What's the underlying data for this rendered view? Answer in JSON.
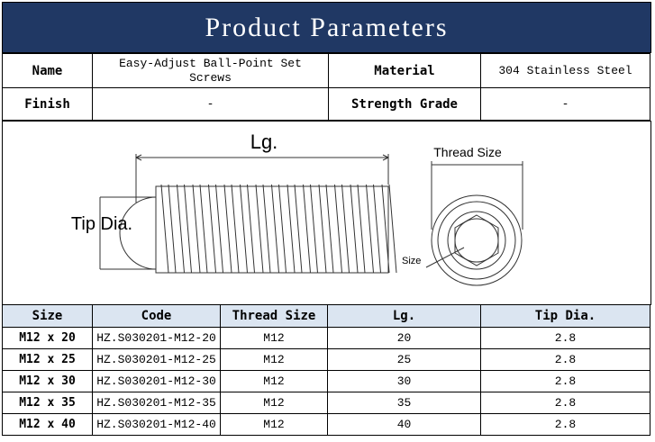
{
  "title": "Product Parameters",
  "params": {
    "name_label": "Name",
    "name_value": "Easy-Adjust Ball-Point Set Screws",
    "material_label": "Material",
    "material_value": "304 Stainless Steel",
    "finish_label": "Finish",
    "finish_value": "-",
    "strength_label": "Strength Grade",
    "strength_value": "-"
  },
  "diagram": {
    "length_label": "Lg.",
    "tip_label": "Tip Dia.",
    "thread_label": "Thread Size",
    "size_label": "Size"
  },
  "table": {
    "headers": [
      "Size",
      "Code",
      "Thread Size",
      "Lg.",
      "Tip Dia."
    ],
    "rows": [
      [
        "M12 x 20",
        "HZ.S030201-M12-20",
        "M12",
        "20",
        "2.8"
      ],
      [
        "M12 x 25",
        "HZ.S030201-M12-25",
        "M12",
        "25",
        "2.8"
      ],
      [
        "M12 x 30",
        "HZ.S030201-M12-30",
        "M12",
        "30",
        "2.8"
      ],
      [
        "M12 x 35",
        "HZ.S030201-M12-35",
        "M12",
        "35",
        "2.8"
      ],
      [
        "M12 x 40",
        "HZ.S030201-M12-40",
        "M12",
        "40",
        "2.8"
      ]
    ]
  },
  "colors": {
    "title_bg": "#203864",
    "header_bg": "#dbe5f1"
  }
}
